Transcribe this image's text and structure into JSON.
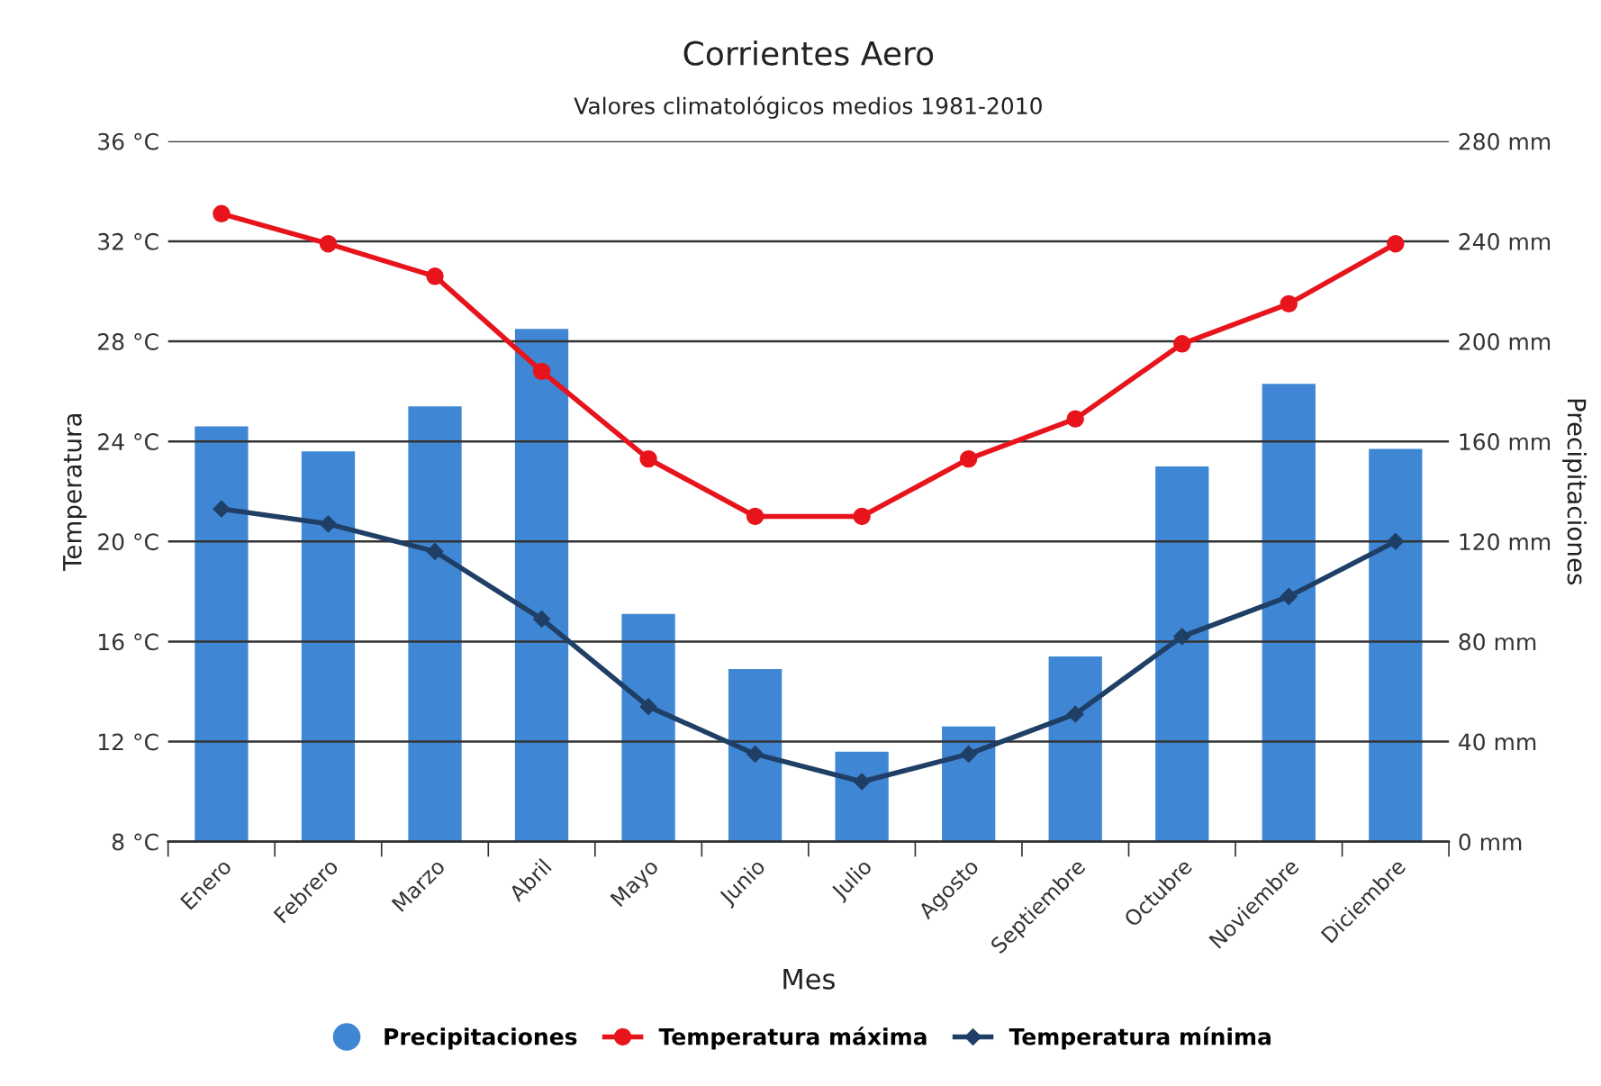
{
  "chart_data": {
    "type": "bar",
    "title": "Corrientes Aero",
    "subtitle": "Valores climatológicos medios 1981-2010",
    "xlabel": "Mes",
    "ylabel": "Temperatura",
    "y2label": "Precipitaciones",
    "categories": [
      "Enero",
      "Febrero",
      "Marzo",
      "Abril",
      "Mayo",
      "Junio",
      "Julio",
      "Agosto",
      "Septiembre",
      "Octubre",
      "Noviembre",
      "Diciembre"
    ],
    "series": [
      {
        "name": "Precipitaciones",
        "axis": "y2",
        "color": "#3f87d4",
        "values": [
          166,
          156,
          174,
          205,
          91,
          69,
          36,
          46,
          74,
          150,
          183,
          157
        ]
      },
      {
        "name": "Temperatura máxima",
        "type": "line",
        "axis": "y",
        "color": "#e8141c",
        "marker": "circle",
        "values": [
          33.1,
          31.9,
          30.6,
          26.8,
          23.3,
          21.0,
          21.0,
          23.3,
          24.9,
          27.9,
          29.5,
          31.9
        ]
      },
      {
        "name": "Temperatura mínima",
        "type": "line",
        "axis": "y",
        "color": "#1f3f66",
        "marker": "diamond",
        "values": [
          21.3,
          20.7,
          19.6,
          16.9,
          13.4,
          11.5,
          10.4,
          11.5,
          13.1,
          16.2,
          17.8,
          20.0
        ]
      }
    ],
    "ylim": [
      8,
      36
    ],
    "yticks": [
      {
        "value": 8,
        "label": "8 °C"
      },
      {
        "value": 12,
        "label": "12 °C"
      },
      {
        "value": 16,
        "label": "16 °C"
      },
      {
        "value": 20,
        "label": "20 °C"
      },
      {
        "value": 24,
        "label": "24 °C"
      },
      {
        "value": 28,
        "label": "28 °C"
      },
      {
        "value": 32,
        "label": "32 °C"
      },
      {
        "value": 36,
        "label": "36 °C"
      }
    ],
    "y2lim": [
      0,
      280
    ],
    "y2ticks": [
      {
        "value": 0,
        "label": "0 mm"
      },
      {
        "value": 40,
        "label": "40 mm"
      },
      {
        "value": 80,
        "label": "80 mm"
      },
      {
        "value": 120,
        "label": "120 mm"
      },
      {
        "value": 160,
        "label": "160 mm"
      },
      {
        "value": 200,
        "label": "200 mm"
      },
      {
        "value": 240,
        "label": "240 mm"
      },
      {
        "value": 280,
        "label": "280 mm"
      }
    ],
    "grid": "y",
    "legend": "bottom",
    "line_style": "solid"
  }
}
